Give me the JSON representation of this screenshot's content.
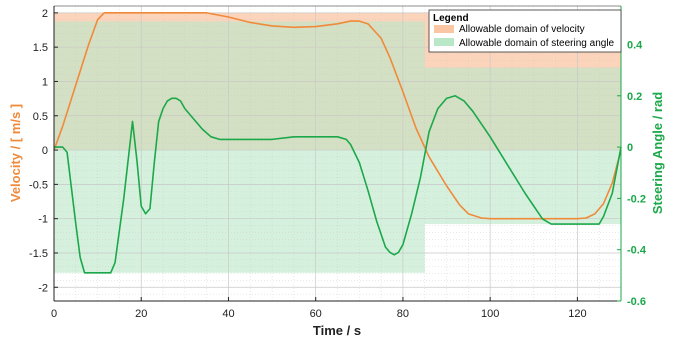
{
  "chart_data": {
    "type": "line",
    "title": "",
    "xlabel": "Time / s",
    "ylabel_left": "Velocity / [ m/s ]",
    "ylabel_right": "Steering Angle / rad",
    "xlim": [
      0,
      130
    ],
    "ylim_left": [
      -2.2,
      2.1
    ],
    "ylim_right": [
      -0.6,
      0.55
    ],
    "x_ticks": [
      0,
      20,
      40,
      60,
      80,
      100,
      120
    ],
    "y_ticks_left": [
      -2,
      -1.5,
      -1,
      -0.5,
      0,
      0.5,
      1,
      1.5,
      2
    ],
    "y_ticks_right": [
      -0.6,
      -0.4,
      -0.2,
      0,
      0.2,
      0.4
    ],
    "x_tick_labels": [
      "0",
      "20",
      "40",
      "60",
      "80",
      "100",
      "120"
    ],
    "y_tick_labels_left": [
      "-2",
      "-1.5",
      "-1",
      "-0.5",
      "0",
      "0.5",
      "1",
      "1.5",
      "2"
    ],
    "y_tick_labels_right": [
      "-0.6",
      "-0.4",
      "-0.2",
      "0",
      "0.2",
      "0.4"
    ],
    "grid": true,
    "legend": {
      "title": "Legend",
      "placement": "top-right",
      "entries": [
        "Allowable domain of velocity",
        "Allowable domain of steering angle"
      ]
    },
    "colors": {
      "velocity": "#f08a3a",
      "steering": "#1ba84a",
      "velocity_band": "#fbc6a4",
      "steering_band": "#b9e8c8",
      "right_axis": "#1ba84a",
      "left_axis_title": "#f08a3a"
    },
    "bands": {
      "velocity": [
        {
          "x0": 0,
          "x1": 130,
          "low": 0,
          "high": 2
        }
      ],
      "steering": [
        {
          "x0": 0,
          "x1": 85,
          "low": -0.49,
          "high": 0.49
        },
        {
          "x0": 85,
          "x1": 130,
          "low": -0.3,
          "high": 0.31
        }
      ]
    },
    "series": [
      {
        "axis": "left",
        "color": "#f08a3a",
        "x": [
          0,
          2,
          4,
          6,
          8,
          10,
          11.5,
          12,
          15,
          20,
          25,
          30,
          35,
          40,
          45,
          50,
          55,
          60,
          65,
          68,
          70,
          72,
          75,
          77,
          80,
          83,
          86,
          90,
          93,
          95,
          98,
          100,
          105,
          110,
          115,
          120,
          122,
          124,
          126,
          128,
          130
        ],
        "y": [
          0,
          0.35,
          0.75,
          1.15,
          1.55,
          1.9,
          2.0,
          2.0,
          2.0,
          2.0,
          2.0,
          2.0,
          2.0,
          1.94,
          1.86,
          1.81,
          1.79,
          1.8,
          1.84,
          1.88,
          1.88,
          1.84,
          1.63,
          1.35,
          0.85,
          0.32,
          -0.1,
          -0.52,
          -0.8,
          -0.93,
          -0.99,
          -1.0,
          -1.0,
          -1.0,
          -1.0,
          -1.0,
          -0.99,
          -0.93,
          -0.78,
          -0.48,
          0
        ]
      },
      {
        "axis": "right",
        "color": "#1ba84a",
        "x": [
          0,
          2,
          3,
          5,
          6,
          7,
          10,
          13,
          14,
          16,
          17,
          18,
          19,
          20,
          21,
          22,
          23,
          24,
          25,
          26,
          27,
          28,
          29,
          30,
          32,
          34,
          36,
          38,
          40,
          45,
          50,
          55,
          60,
          65,
          67,
          68,
          70,
          72,
          74,
          76,
          77,
          78,
          79,
          80,
          82,
          84,
          86,
          88,
          90,
          92,
          94,
          96,
          100,
          104,
          108,
          112,
          114,
          116,
          120,
          124,
          125,
          126,
          128,
          130
        ],
        "y": [
          0,
          0,
          -0.02,
          -0.3,
          -0.43,
          -0.49,
          -0.49,
          -0.49,
          -0.45,
          -0.2,
          -0.05,
          0.1,
          -0.05,
          -0.23,
          -0.26,
          -0.24,
          -0.06,
          0.1,
          0.15,
          0.18,
          0.19,
          0.19,
          0.18,
          0.15,
          0.11,
          0.07,
          0.04,
          0.03,
          0.03,
          0.03,
          0.03,
          0.04,
          0.04,
          0.04,
          0.03,
          0.01,
          -0.06,
          -0.17,
          -0.29,
          -0.39,
          -0.41,
          -0.42,
          -0.41,
          -0.38,
          -0.26,
          -0.12,
          0.06,
          0.15,
          0.19,
          0.2,
          0.18,
          0.14,
          0.04,
          -0.07,
          -0.18,
          -0.28,
          -0.3,
          -0.3,
          -0.3,
          -0.3,
          -0.3,
          -0.27,
          -0.18,
          0
        ]
      }
    ]
  }
}
